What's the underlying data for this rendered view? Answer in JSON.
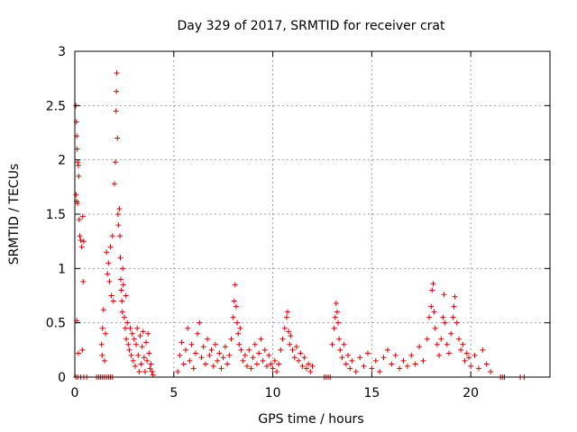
{
  "chart_data": {
    "type": "scatter",
    "title": "Day 329 of 2017, SRMTID for receiver crat",
    "xlabel": "GPS time / hours",
    "ylabel": "SRMTID / TECUs",
    "xlim": [
      0,
      24
    ],
    "ylim": [
      0,
      3
    ],
    "xticks": [
      0,
      5,
      10,
      15,
      20
    ],
    "yticks": [
      0,
      0.5,
      1,
      1.5,
      2,
      2.5,
      3
    ],
    "xtick_labels": [
      "0",
      "5",
      "10",
      "15",
      "20"
    ],
    "ytick_labels": [
      "0",
      "0.5",
      "1",
      "1.5",
      "2",
      "2.5",
      "3"
    ],
    "grid": true,
    "marker": "+",
    "color": "#dd0000",
    "series": [
      {
        "name": "SRMTID",
        "points": [
          [
            0.05,
            2.5
          ],
          [
            0.08,
            2.35
          ],
          [
            0.1,
            2.22
          ],
          [
            0.12,
            2.1
          ],
          [
            0.15,
            1.98
          ],
          [
            0.18,
            1.95
          ],
          [
            0.2,
            1.85
          ],
          [
            0.06,
            1.68
          ],
          [
            0.09,
            1.62
          ],
          [
            0.14,
            1.6
          ],
          [
            0.22,
            1.45
          ],
          [
            0.25,
            1.3
          ],
          [
            0.3,
            1.26
          ],
          [
            0.35,
            1.2
          ],
          [
            0.4,
            1.48
          ],
          [
            0.45,
            1.25
          ],
          [
            0.42,
            0.88
          ],
          [
            0.1,
            0.52
          ],
          [
            0.18,
            0.22
          ],
          [
            0.38,
            0.25
          ],
          [
            0.05,
            0.0
          ],
          [
            0.15,
            0.0
          ],
          [
            0.3,
            0.0
          ],
          [
            0.45,
            0.0
          ],
          [
            0.6,
            0.0
          ],
          [
            1.1,
            0.0
          ],
          [
            1.2,
            0.0
          ],
          [
            1.3,
            0.0
          ],
          [
            1.4,
            0.0
          ],
          [
            1.5,
            0.0
          ],
          [
            1.6,
            0.0
          ],
          [
            1.7,
            0.0
          ],
          [
            1.8,
            0.0
          ],
          [
            1.9,
            0.0
          ],
          [
            1.35,
            0.3
          ],
          [
            1.4,
            0.45
          ],
          [
            1.45,
            0.62
          ],
          [
            1.38,
            0.2
          ],
          [
            1.5,
            0.15
          ],
          [
            1.55,
            0.4
          ],
          [
            1.6,
            1.15
          ],
          [
            1.65,
            0.95
          ],
          [
            1.7,
            1.05
          ],
          [
            1.75,
            0.88
          ],
          [
            1.8,
            1.2
          ],
          [
            1.85,
            0.75
          ],
          [
            1.9,
            1.3
          ],
          [
            1.95,
            0.7
          ],
          [
            2.0,
            1.78
          ],
          [
            2.05,
            1.98
          ],
          [
            2.08,
            2.45
          ],
          [
            2.1,
            2.63
          ],
          [
            2.12,
            2.8
          ],
          [
            2.15,
            2.2
          ],
          [
            2.18,
            1.5
          ],
          [
            2.2,
            1.4
          ],
          [
            2.25,
            1.55
          ],
          [
            2.28,
            1.3
          ],
          [
            2.3,
            1.1
          ],
          [
            2.32,
            0.9
          ],
          [
            2.35,
            0.8
          ],
          [
            2.38,
            0.7
          ],
          [
            2.4,
            0.6
          ],
          [
            2.42,
            1.0
          ],
          [
            2.45,
            0.85
          ],
          [
            2.5,
            0.55
          ],
          [
            2.55,
            0.45
          ],
          [
            2.58,
            0.75
          ],
          [
            2.6,
            0.35
          ],
          [
            2.65,
            0.5
          ],
          [
            2.7,
            0.3
          ],
          [
            2.75,
            0.25
          ],
          [
            2.8,
            0.45
          ],
          [
            2.85,
            0.2
          ],
          [
            2.9,
            0.4
          ],
          [
            2.95,
            0.15
          ],
          [
            3.0,
            0.35
          ],
          [
            3.05,
            0.1
          ],
          [
            3.1,
            0.3
          ],
          [
            3.15,
            0.45
          ],
          [
            3.2,
            0.2
          ],
          [
            3.25,
            0.05
          ],
          [
            3.3,
            0.38
          ],
          [
            3.35,
            0.12
          ],
          [
            3.4,
            0.28
          ],
          [
            3.45,
            0.42
          ],
          [
            3.5,
            0.18
          ],
          [
            3.55,
            0.05
          ],
          [
            3.6,
            0.32
          ],
          [
            3.65,
            0.15
          ],
          [
            3.7,
            0.4
          ],
          [
            3.75,
            0.22
          ],
          [
            3.8,
            0.08
          ],
          [
            3.85,
            0.12
          ],
          [
            3.9,
            0.05
          ],
          [
            3.95,
            0.02
          ],
          [
            5.2,
            0.05
          ],
          [
            5.3,
            0.2
          ],
          [
            5.4,
            0.32
          ],
          [
            5.5,
            0.12
          ],
          [
            5.6,
            0.25
          ],
          [
            5.7,
            0.45
          ],
          [
            5.8,
            0.15
          ],
          [
            5.9,
            0.3
          ],
          [
            6.0,
            0.08
          ],
          [
            6.1,
            0.22
          ],
          [
            6.2,
            0.4
          ],
          [
            6.3,
            0.5
          ],
          [
            6.4,
            0.18
          ],
          [
            6.5,
            0.28
          ],
          [
            6.6,
            0.12
          ],
          [
            6.7,
            0.35
          ],
          [
            6.8,
            0.2
          ],
          [
            6.9,
            0.25
          ],
          [
            7.0,
            0.1
          ],
          [
            7.1,
            0.3
          ],
          [
            7.2,
            0.15
          ],
          [
            7.3,
            0.22
          ],
          [
            7.4,
            0.08
          ],
          [
            7.5,
            0.18
          ],
          [
            7.6,
            0.28
          ],
          [
            7.7,
            0.12
          ],
          [
            7.8,
            0.2
          ],
          [
            7.9,
            0.35
          ],
          [
            8.0,
            0.55
          ],
          [
            8.05,
            0.7
          ],
          [
            8.1,
            0.85
          ],
          [
            8.15,
            0.65
          ],
          [
            8.2,
            0.5
          ],
          [
            8.25,
            0.4
          ],
          [
            8.3,
            0.3
          ],
          [
            8.35,
            0.45
          ],
          [
            8.4,
            0.25
          ],
          [
            8.5,
            0.15
          ],
          [
            8.6,
            0.2
          ],
          [
            8.7,
            0.1
          ],
          [
            8.8,
            0.25
          ],
          [
            8.9,
            0.08
          ],
          [
            9.0,
            0.18
          ],
          [
            9.1,
            0.3
          ],
          [
            9.2,
            0.12
          ],
          [
            9.3,
            0.22
          ],
          [
            9.4,
            0.35
          ],
          [
            9.5,
            0.15
          ],
          [
            9.6,
            0.25
          ],
          [
            9.7,
            0.1
          ],
          [
            9.8,
            0.2
          ],
          [
            9.9,
            0.12
          ],
          [
            10.0,
            0.08
          ],
          [
            10.1,
            0.15
          ],
          [
            10.2,
            0.05
          ],
          [
            10.3,
            0.12
          ],
          [
            10.4,
            0.25
          ],
          [
            10.5,
            0.35
          ],
          [
            10.6,
            0.45
          ],
          [
            10.7,
            0.55
          ],
          [
            10.75,
            0.6
          ],
          [
            10.8,
            0.42
          ],
          [
            10.85,
            0.3
          ],
          [
            10.9,
            0.38
          ],
          [
            11.0,
            0.25
          ],
          [
            11.1,
            0.18
          ],
          [
            11.2,
            0.28
          ],
          [
            11.3,
            0.15
          ],
          [
            11.4,
            0.22
          ],
          [
            11.5,
            0.1
          ],
          [
            11.6,
            0.18
          ],
          [
            11.7,
            0.08
          ],
          [
            11.8,
            0.12
          ],
          [
            11.9,
            0.05
          ],
          [
            12.0,
            0.1
          ],
          [
            12.6,
            0.0
          ],
          [
            12.7,
            0.0
          ],
          [
            12.8,
            0.0
          ],
          [
            12.9,
            0.0
          ],
          [
            13.0,
            0.3
          ],
          [
            13.1,
            0.45
          ],
          [
            13.15,
            0.55
          ],
          [
            13.2,
            0.68
          ],
          [
            13.25,
            0.6
          ],
          [
            13.3,
            0.5
          ],
          [
            13.35,
            0.35
          ],
          [
            13.4,
            0.25
          ],
          [
            13.5,
            0.18
          ],
          [
            13.6,
            0.3
          ],
          [
            13.7,
            0.12
          ],
          [
            13.8,
            0.2
          ],
          [
            13.9,
            0.08
          ],
          [
            14.0,
            0.15
          ],
          [
            14.2,
            0.05
          ],
          [
            14.4,
            0.18
          ],
          [
            14.6,
            0.1
          ],
          [
            14.8,
            0.22
          ],
          [
            15.0,
            0.08
          ],
          [
            15.2,
            0.15
          ],
          [
            15.4,
            0.05
          ],
          [
            15.6,
            0.18
          ],
          [
            15.8,
            0.25
          ],
          [
            16.0,
            0.12
          ],
          [
            16.2,
            0.2
          ],
          [
            16.4,
            0.08
          ],
          [
            16.6,
            0.15
          ],
          [
            16.8,
            0.1
          ],
          [
            17.0,
            0.2
          ],
          [
            17.2,
            0.12
          ],
          [
            17.4,
            0.28
          ],
          [
            17.6,
            0.15
          ],
          [
            17.8,
            0.35
          ],
          [
            17.9,
            0.55
          ],
          [
            18.0,
            0.65
          ],
          [
            18.05,
            0.8
          ],
          [
            18.1,
            0.86
          ],
          [
            18.15,
            0.6
          ],
          [
            18.2,
            0.45
          ],
          [
            18.3,
            0.3
          ],
          [
            18.4,
            0.2
          ],
          [
            18.5,
            0.35
          ],
          [
            18.6,
            0.55
          ],
          [
            18.65,
            0.76
          ],
          [
            18.7,
            0.5
          ],
          [
            18.8,
            0.3
          ],
          [
            18.9,
            0.22
          ],
          [
            19.0,
            0.4
          ],
          [
            19.1,
            0.55
          ],
          [
            19.15,
            0.65
          ],
          [
            19.2,
            0.74
          ],
          [
            19.3,
            0.5
          ],
          [
            19.4,
            0.35
          ],
          [
            19.5,
            0.25
          ],
          [
            19.6,
            0.3
          ],
          [
            19.7,
            0.15
          ],
          [
            19.8,
            0.22
          ],
          [
            19.9,
            0.18
          ],
          [
            20.0,
            0.1
          ],
          [
            20.2,
            0.2
          ],
          [
            20.4,
            0.08
          ],
          [
            20.6,
            0.25
          ],
          [
            20.8,
            0.12
          ],
          [
            21.0,
            0.05
          ],
          [
            21.5,
            0.0
          ],
          [
            21.6,
            0.0
          ],
          [
            21.7,
            0.0
          ],
          [
            22.5,
            0.0
          ],
          [
            22.7,
            0.0
          ]
        ]
      }
    ]
  }
}
